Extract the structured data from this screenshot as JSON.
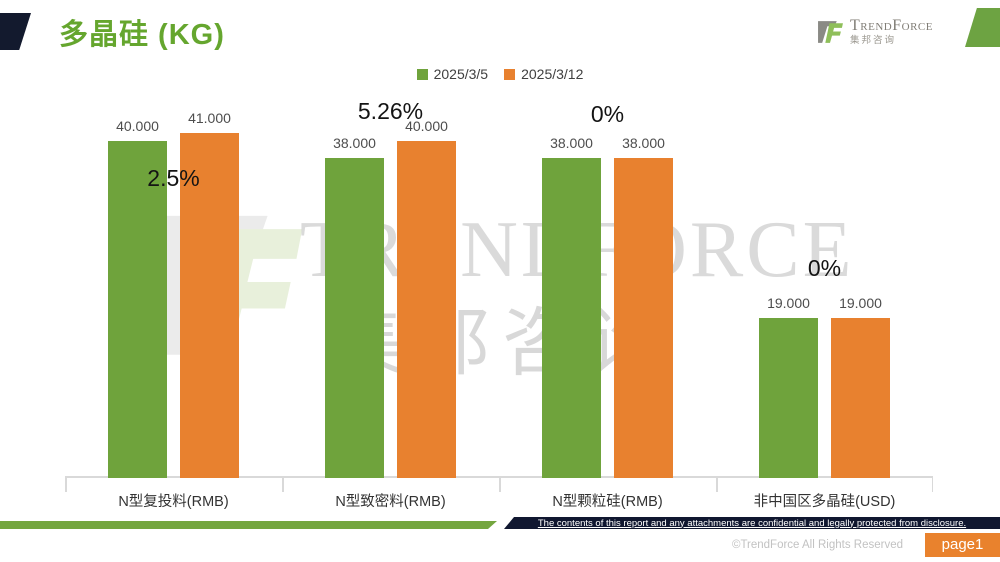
{
  "title": "多晶硅 (KG)",
  "logo": {
    "t": "T",
    "rend": "REND",
    "f": "F",
    "orce": "ORCE",
    "cn": "集邦咨询"
  },
  "watermark": {
    "en": "TRENDFORCE",
    "cn": "集邦咨询"
  },
  "legend": [
    {
      "label": "2025/3/5",
      "color": "#6FA33C"
    },
    {
      "label": "2025/3/12",
      "color": "#E8812F"
    }
  ],
  "chart_data": {
    "type": "bar",
    "title": "多晶硅 (KG)",
    "categories": [
      "N型复投料(RMB)",
      "N型致密料(RMB)",
      "N型颗粒硅(RMB)",
      "非中国区多晶硅(USD)"
    ],
    "series": [
      {
        "name": "2025/3/5",
        "color": "#6FA33C",
        "values": [
          40,
          38,
          38,
          19
        ]
      },
      {
        "name": "2025/3/12",
        "color": "#E8812F",
        "values": [
          41,
          40,
          38,
          19
        ]
      }
    ],
    "value_labels": [
      [
        "40.000",
        "38.000",
        "38.000",
        "19.000"
      ],
      [
        "41.000",
        "40.000",
        "38.000",
        "19.000"
      ]
    ],
    "change_labels": [
      "2.5%",
      "5.26%",
      "0%",
      "0%"
    ],
    "ylim": [
      0,
      46
    ],
    "grid": false,
    "legend_position": "top"
  },
  "footer": {
    "confidential": "The contents of this report and any attachments are confidential and legally protected from disclosure.",
    "copyright": "©TrendForce All Rights Reserved",
    "page": "page1"
  },
  "colors": {
    "title_green": "#65A62E",
    "bar_green": "#6FA33C",
    "bar_orange": "#E8812F",
    "footer_navy": "#101730",
    "stripe_green": "#74A63F",
    "badge_orange": "#E9822D"
  }
}
